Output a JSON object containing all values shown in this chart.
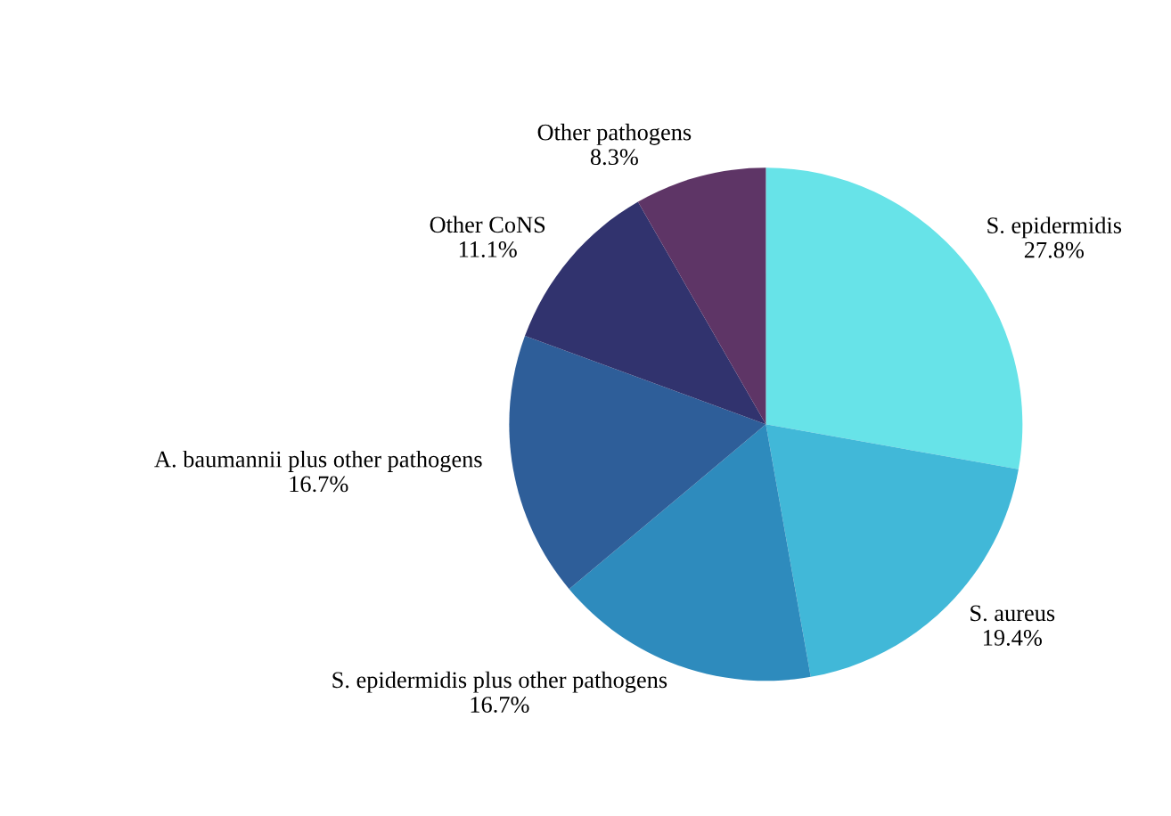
{
  "chart_data": {
    "type": "pie",
    "categories": [
      "S. epidermidis",
      "S. aureus",
      "S. epidermidis plus other pathogens",
      "A. baumannii plus other pathogens",
      "Other CoNS",
      "Other pathogens"
    ],
    "values": [
      27.8,
      19.4,
      16.7,
      16.7,
      11.1,
      8.3
    ],
    "value_labels": [
      "27.8%",
      "19.4%",
      "16.7%",
      "16.7%",
      "11.1%",
      "8.3%"
    ],
    "colors": [
      "#67e3e8",
      "#41b8d8",
      "#2e8bbd",
      "#2e5e99",
      "#31336e",
      "#5e3566"
    ],
    "legend": false
  }
}
